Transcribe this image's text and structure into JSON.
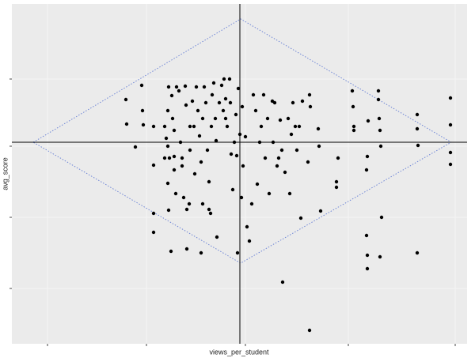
{
  "chart_data": {
    "type": "scatter",
    "x_label": "views_per_student",
    "y_label": "avg_score",
    "x": [
      159,
      179,
      160,
      171,
      180,
      181,
      194,
      194,
      194,
      194,
      208,
      210,
      212,
      212,
      213,
      214,
      212,
      213,
      216,
      217,
      218,
      220,
      220,
      222,
      223,
      226,
      228,
      230,
      232,
      234,
      235,
      236,
      236,
      240,
      240,
      243,
      246,
      248,
      250,
      252,
      254,
      256,
      258,
      260,
      262,
      264,
      266,
      268,
      270,
      272,
      273,
      274,
      277,
      280,
      282,
      283,
      285,
      287,
      290,
      291,
      292,
      294,
      296,
      298,
      300,
      301,
      303,
      305,
      306,
      307,
      310,
      312,
      315,
      318,
      320,
      323,
      325,
      328,
      330,
      333,
      335,
      338,
      340,
      344,
      345,
      347,
      350,
      352,
      354,
      356,
      357,
      360,
      364,
      366,
      368,
      370,
      373,
      375,
      378,
      380,
      382,
      389,
      391,
      391,
      392,
      402,
      403,
      405,
      427,
      425,
      425,
      445,
      446,
      447,
      447,
      464,
      463,
      463,
      464,
      464,
      465,
      478,
      478,
      479,
      480,
      481,
      482,
      480,
      527,
      527,
      527,
      528,
      569,
      569,
      569,
      569,
      254,
      264,
      239,
      208,
      220,
      230,
      245,
      256,
      267,
      285,
      299
    ],
    "y": [
      327,
      345,
      296,
      267,
      313,
      295,
      293,
      244,
      183,
      159,
      293,
      278,
      313,
      268,
      343,
      253,
      221,
      187,
      135,
      332,
      303,
      288,
      255,
      208,
      343,
      338,
      273,
      243,
      203,
      344,
      320,
      188,
      138,
      293,
      263,
      325,
      233,
      343,
      313,
      281,
      248,
      195,
      343,
      323,
      263,
      223,
      183,
      333,
      348,
      303,
      275,
      153,
      323,
      345,
      313,
      353,
      328,
      293,
      353,
      323,
      258,
      213,
      273,
      308,
      133,
      341,
      283,
      203,
      318,
      243,
      280,
      166,
      148,
      195,
      333,
      313,
      220,
      273,
      293,
      333,
      253,
      303,
      208,
      325,
      273,
      323,
      243,
      253,
      301,
      263,
      96,
      235,
      303,
      208,
      283,
      323,
      293,
      263,
      293,
      177,
      325,
      248,
      333,
      35,
      318,
      290,
      268,
      186,
      253,
      223,
      216,
      338,
      318,
      293,
      288,
      255,
      238,
      155,
      130,
      113,
      300,
      338,
      327,
      303,
      288,
      268,
      178,
      128,
      308,
      290,
      133,
      269,
      329,
      295,
      260,
      245,
      133,
      188,
      195,
      253,
      238,
      253,
      293,
      303,
      293,
      303,
      256
    ],
    "color": "#000000",
    "xlim": [
      15,
      590
    ],
    "ylim": [
      18,
      448
    ],
    "xticks": [
      60,
      185,
      310,
      440,
      575
    ],
    "yticks": [
      88,
      178,
      268,
      353
    ],
    "grid": true,
    "vline": 303,
    "hline": 273,
    "polygon": {
      "x": [
        42,
        304,
        570,
        304
      ],
      "y": [
        273,
        429,
        273,
        120
      ],
      "color": "#6f86d6"
    }
  }
}
